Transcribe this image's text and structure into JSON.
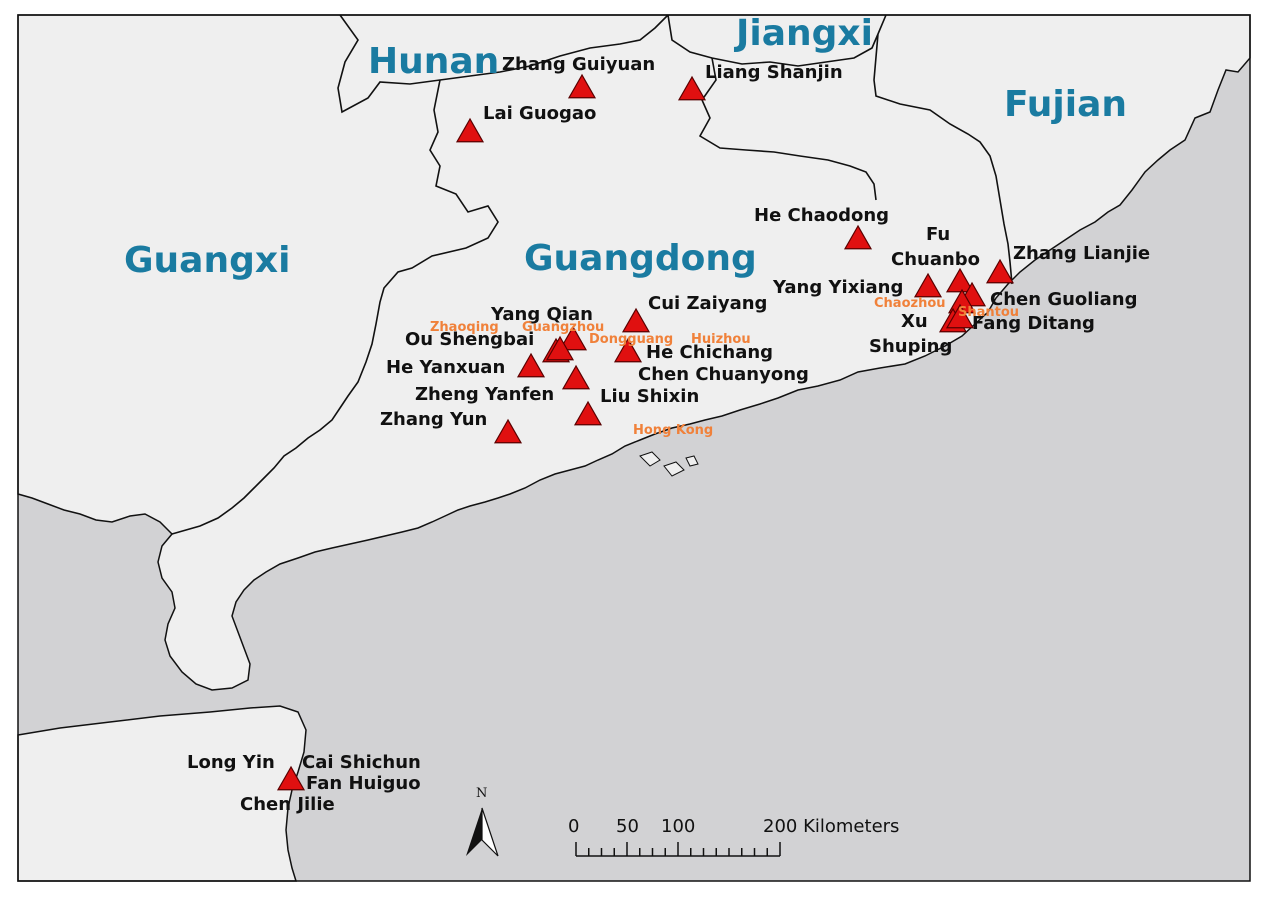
{
  "colors": {
    "sea": "#d2d2d4",
    "land": "#efefef",
    "border": "#111111",
    "region_label": "#1a7ba1",
    "person_label": "#111111",
    "city_label": "#f0813a",
    "marker_fill": "#e01010",
    "marker_stroke": "#5a0000"
  },
  "regions": {
    "hunan": "Hunan",
    "jiangxi": "Jiangxi",
    "fujian": "Fujian",
    "guangxi": "Guangxi",
    "guangdong": "Guangdong"
  },
  "cities": {
    "zhaoqing": "Zhaoqing",
    "guangzhou": "Guangzhou",
    "dongguang": "Dongguang",
    "huizhou": "Huizhou",
    "hong_kong": "Hong Kong",
    "chaozhou": "Chaozhou",
    "shantou": "Shantou"
  },
  "people": {
    "zhang_guiyuan": "Zhang Guiyuan",
    "liang_shanjin": "Liang Shanjin",
    "lai_guogao": "Lai Guogao",
    "he_chaodong": "He Chaodong",
    "fu_chuanbo_1": "Fu",
    "fu_chuanbo_2": "Chuanbo",
    "zhang_lianjie": "Zhang Lianjie",
    "yang_yixiang": "Yang Yixiang",
    "chen_guoliang": "Chen Guoliang",
    "xu_shuping_1": "Xu",
    "xu_shuping_2": "Shuping",
    "fang_ditang": "Fang Ditang",
    "yang_qian": "Yang Qian",
    "cui_zaiyang": "Cui Zaiyang",
    "ou_shengbai": "Ou Shengbai",
    "he_chichang": "He Chichang",
    "he_yanxuan": "He Yanxuan",
    "chen_chuanyong": "Chen Chuanyong",
    "zheng_yanfen": "Zheng Yanfen",
    "liu_shixin": "Liu Shixin",
    "zhang_yun": "Zhang Yun",
    "long_yin": "Long Yin",
    "cai_shichun": "Cai Shichun",
    "fan_huiguo": "Fan Huiguo",
    "chen_jilie": "Chen Jilie"
  },
  "north_arrow": {
    "label": "N",
    "icon": "north-arrow-icon"
  },
  "scale_bar": {
    "ticks": [
      "0",
      "50",
      "100"
    ],
    "end_label": "200 Kilometers",
    "values_km": [
      0,
      50,
      100,
      200
    ]
  }
}
